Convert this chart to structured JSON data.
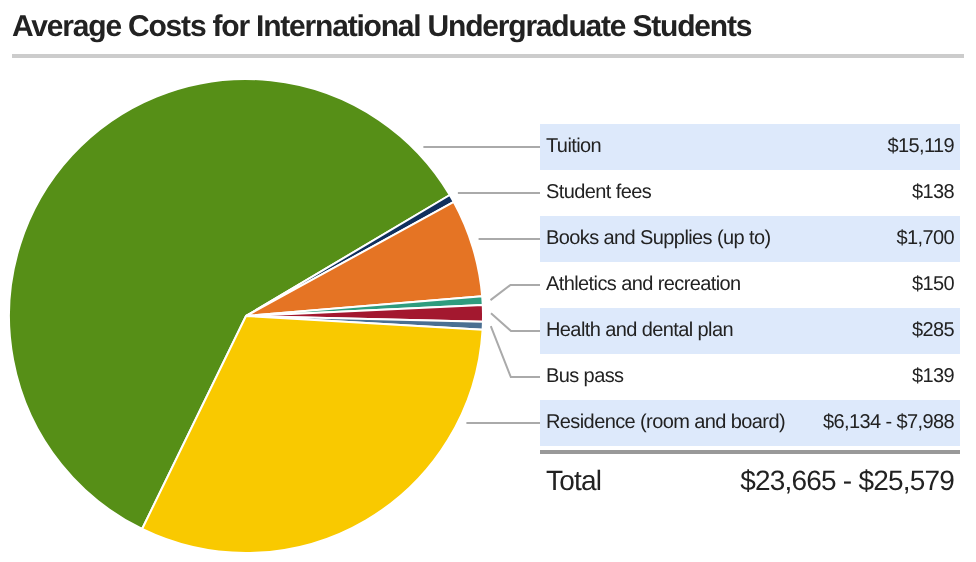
{
  "chart_data": {
    "type": "pie",
    "title": "Average Costs for International Undergraduate Students",
    "categories": [
      "Tuition",
      "Student fees",
      "Books and Supplies (up to)",
      "Athletics and recreation",
      "Health and dental plan",
      "Bus pass",
      "Residence (room and board)"
    ],
    "values": [
      59.25,
      0.54,
      6.66,
      0.59,
      1.12,
      0.54,
      31.3
    ],
    "colors": [
      "#568f17",
      "#10305e",
      "#e57424",
      "#2e9c7e",
      "#a3182f",
      "#4a6f92",
      "#f9c900"
    ],
    "annotations": [
      "$15,119",
      "$138",
      "$1,700",
      "$150",
      "$285",
      "$139",
      "$6,134 - $7,988",
      "Total",
      "$23,665 - $25,579"
    ]
  }
}
